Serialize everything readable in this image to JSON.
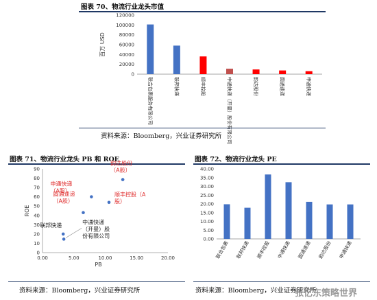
{
  "fig70": {
    "title": "图表 70、物流行业龙头市值",
    "source": "资料来源：Bloomberg，兴业证券研究所"
  },
  "fig71": {
    "title": "图表 71、物流行业龙头 PB 和 ROE",
    "source": "资料来源：Bloomberg，兴业证券研究所"
  },
  "fig72": {
    "title": "图表 72、物流行业龙头 PE",
    "source": "资料来源：Bloomberg，兴业证券研究所"
  },
  "watermark": "张忆东策略世界",
  "colors": {
    "blue": "#4472c4",
    "red": "#ff0000",
    "darkred": "#c0504d",
    "label_red": "#e03030",
    "title_rule": "#1f3864"
  },
  "chart_data": [
    {
      "type": "bar",
      "ylabel": "百万 USD",
      "ylim": [
        0,
        120000
      ],
      "yticks": [
        "0",
        "20000",
        "40000",
        "60000",
        "80000",
        "100000",
        "120000"
      ],
      "categories": [
        "联合包裹服务有限公司",
        "联邦快递",
        "顺丰控股",
        "中通快递（开曼）股份有限公司",
        "韵达股份",
        "圆通速递",
        "申通快递"
      ],
      "values": [
        101000,
        58000,
        36000,
        11000,
        9500,
        7500,
        6000
      ],
      "bar_colors": [
        "#4472c4",
        "#4472c4",
        "#ff0000",
        "#c0504d",
        "#ff0000",
        "#ff0000",
        "#ff0000"
      ]
    },
    {
      "type": "scatter",
      "xlabel": "PB",
      "ylabel": "ROE",
      "xlim": [
        0,
        20
      ],
      "ylim": [
        0,
        90
      ],
      "xticks": [
        "0.00",
        "5.00",
        "10.00",
        "15.00",
        "20.00"
      ],
      "yticks": [
        "0",
        "10",
        "20",
        "30",
        "40",
        "50",
        "60",
        "70",
        "80",
        "90"
      ],
      "points": [
        {
          "label": "韵达股份（A股）",
          "x": 12.8,
          "y": 78.5,
          "label_color": "#e03030"
        },
        {
          "label": "申通快递（A股）",
          "x": 7.8,
          "y": 60.0,
          "label_color": "#e03030"
        },
        {
          "label": "顺丰控股（A股）",
          "x": 10.6,
          "y": 54.0,
          "label_color": "#e03030"
        },
        {
          "label": "圆通速递（A股）",
          "x": 6.5,
          "y": 43.0,
          "label_color": "#e03030"
        },
        {
          "label": "联邦快递",
          "x": 3.3,
          "y": 20.0,
          "label_color": "#222222"
        },
        {
          "label": "中通快递（开曼）股份有限公司",
          "x": 3.4,
          "y": 14.5,
          "label_color": "#222222"
        }
      ]
    },
    {
      "type": "bar",
      "ylim": [
        0,
        40
      ],
      "yticks": [
        "0.00",
        "5.00",
        "10.00",
        "15.00",
        "20.00",
        "25.00",
        "30.00",
        "35.00",
        "40.00"
      ],
      "categories": [
        "联合包裹",
        "联邦快递",
        "顺丰控股",
        "中通快递",
        "圆通速递",
        "韵达股份",
        "申通快递"
      ],
      "values": [
        19.8,
        17.8,
        36.8,
        32.4,
        21.2,
        19.7,
        19.7
      ]
    }
  ]
}
